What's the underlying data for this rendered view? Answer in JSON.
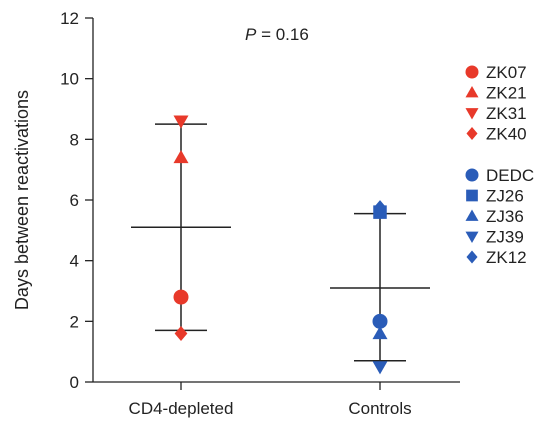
{
  "chart_data": {
    "type": "scatter",
    "title": "",
    "annotation": {
      "label": "P",
      "rest": " = 0.16"
    },
    "xlabel": "",
    "ylabel": "Days between reactivations",
    "categories": [
      "CD4-depleted",
      "Controls"
    ],
    "ylim": [
      0,
      12
    ],
    "yticks": [
      "0",
      "2",
      "4",
      "6",
      "8",
      "10",
      "12"
    ],
    "grid": false,
    "legend_position": "right",
    "series": [
      {
        "name": "ZK07",
        "category": "CD4-depleted",
        "y": 2.8,
        "marker": "circle",
        "color": "#e8392a"
      },
      {
        "name": "ZK21",
        "category": "CD4-depleted",
        "y": 7.4,
        "marker": "triangle-up",
        "color": "#e8392a"
      },
      {
        "name": "ZK31",
        "category": "CD4-depleted",
        "y": 8.6,
        "marker": "triangle-down",
        "color": "#e8392a"
      },
      {
        "name": "ZK40",
        "category": "CD4-depleted",
        "y": 1.6,
        "marker": "diamond",
        "color": "#e8392a"
      },
      {
        "name": "DEDC",
        "category": "Controls",
        "y": 2.0,
        "marker": "circle",
        "color": "#2a5cb8"
      },
      {
        "name": "ZJ26",
        "category": "Controls",
        "y": 5.6,
        "marker": "square",
        "color": "#2a5cb8"
      },
      {
        "name": "ZJ36",
        "category": "Controls",
        "y": 1.6,
        "marker": "triangle-up",
        "color": "#2a5cb8"
      },
      {
        "name": "ZJ39",
        "category": "Controls",
        "y": 0.5,
        "marker": "triangle-down",
        "color": "#2a5cb8"
      },
      {
        "name": "ZK12",
        "category": "Controls",
        "y": 5.75,
        "marker": "diamond",
        "color": "#2a5cb8"
      }
    ],
    "summary": [
      {
        "category": "CD4-depleted",
        "mean": 5.1,
        "lower": 1.7,
        "upper": 8.5
      },
      {
        "category": "Controls",
        "mean": 3.1,
        "lower": 0.7,
        "upper": 5.55
      }
    ],
    "legend_groups": [
      [
        "ZK07",
        "ZK21",
        "ZK31",
        "ZK40"
      ],
      [
        "DEDC",
        "ZJ26",
        "ZJ36",
        "ZJ39",
        "ZK12"
      ]
    ]
  }
}
